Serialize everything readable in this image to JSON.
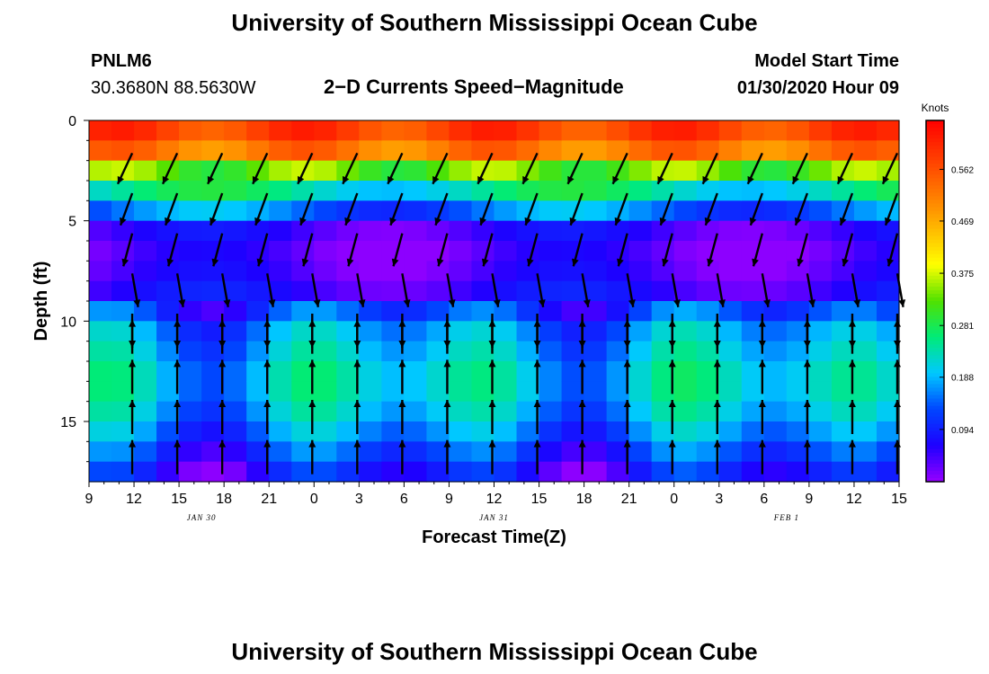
{
  "header": {
    "title": "University of Southern Mississippi Ocean Cube",
    "station": "PNLM6",
    "coords": "30.3680N 88.5630W",
    "plot_title": "2−D Currents Speed−Magnitude",
    "model_label": "Model Start Time",
    "model_time": "01/30/2020 Hour 09"
  },
  "footer": {
    "title": "University of Southern Mississippi Ocean Cube"
  },
  "chart_data": {
    "type": "heatmap",
    "title": "2-D Currents Speed-Magnitude",
    "xlabel": "Forecast Time(Z)",
    "ylabel": "Depth (ft)",
    "x_range_hours": [
      0,
      54
    ],
    "y_range_ft": [
      0,
      18
    ],
    "x_tick_labels": [
      "9",
      "12",
      "15",
      "18",
      "21",
      "0",
      "3",
      "6",
      "9",
      "12",
      "15",
      "18",
      "21",
      "0",
      "3",
      "6",
      "9",
      "12",
      "15"
    ],
    "y_tick_values": [
      0,
      5,
      10,
      15
    ],
    "date_labels": [
      {
        "label": "JAN 30",
        "hour": 7.5
      },
      {
        "label": "JAN 31",
        "hour": 27
      },
      {
        "label": "FEB 1",
        "hour": 46.5
      }
    ],
    "colorbar": {
      "label": "Knots",
      "min": 0.0,
      "max": 0.65,
      "tick_values": [
        0.094,
        0.188,
        0.281,
        0.375,
        0.469,
        0.562
      ],
      "tick_labels": [
        "0.094",
        "0.188",
        "0.281",
        "0.375",
        "0.469",
        "0.562"
      ]
    },
    "depth_profile": {
      "depths_ft": [
        0.5,
        1.5,
        2.5,
        3.5,
        4.5,
        5.5,
        6.5,
        7.5,
        8.5,
        9.5,
        10.5,
        11.5,
        12.5,
        13.5,
        14.5,
        15.5,
        16.5,
        17.5
      ],
      "base_speed_knots": [
        0.58,
        0.52,
        0.33,
        0.24,
        0.15,
        0.05,
        0.03,
        0.04,
        0.06,
        0.12,
        0.17,
        0.19,
        0.21,
        0.21,
        0.19,
        0.16,
        0.12,
        0.08
      ]
    },
    "vector_columns_hours": [
      3,
      6,
      9,
      12,
      15,
      18,
      21,
      24,
      27,
      30,
      33,
      36,
      39,
      42,
      45,
      48,
      51,
      54
    ],
    "vector_rows_depth_ft": [
      1,
      3,
      5,
      7,
      9,
      11,
      13,
      15,
      17
    ],
    "vector_directions_deg": [
      205,
      200,
      195,
      170,
      180,
      0,
      0,
      0,
      0
    ]
  }
}
